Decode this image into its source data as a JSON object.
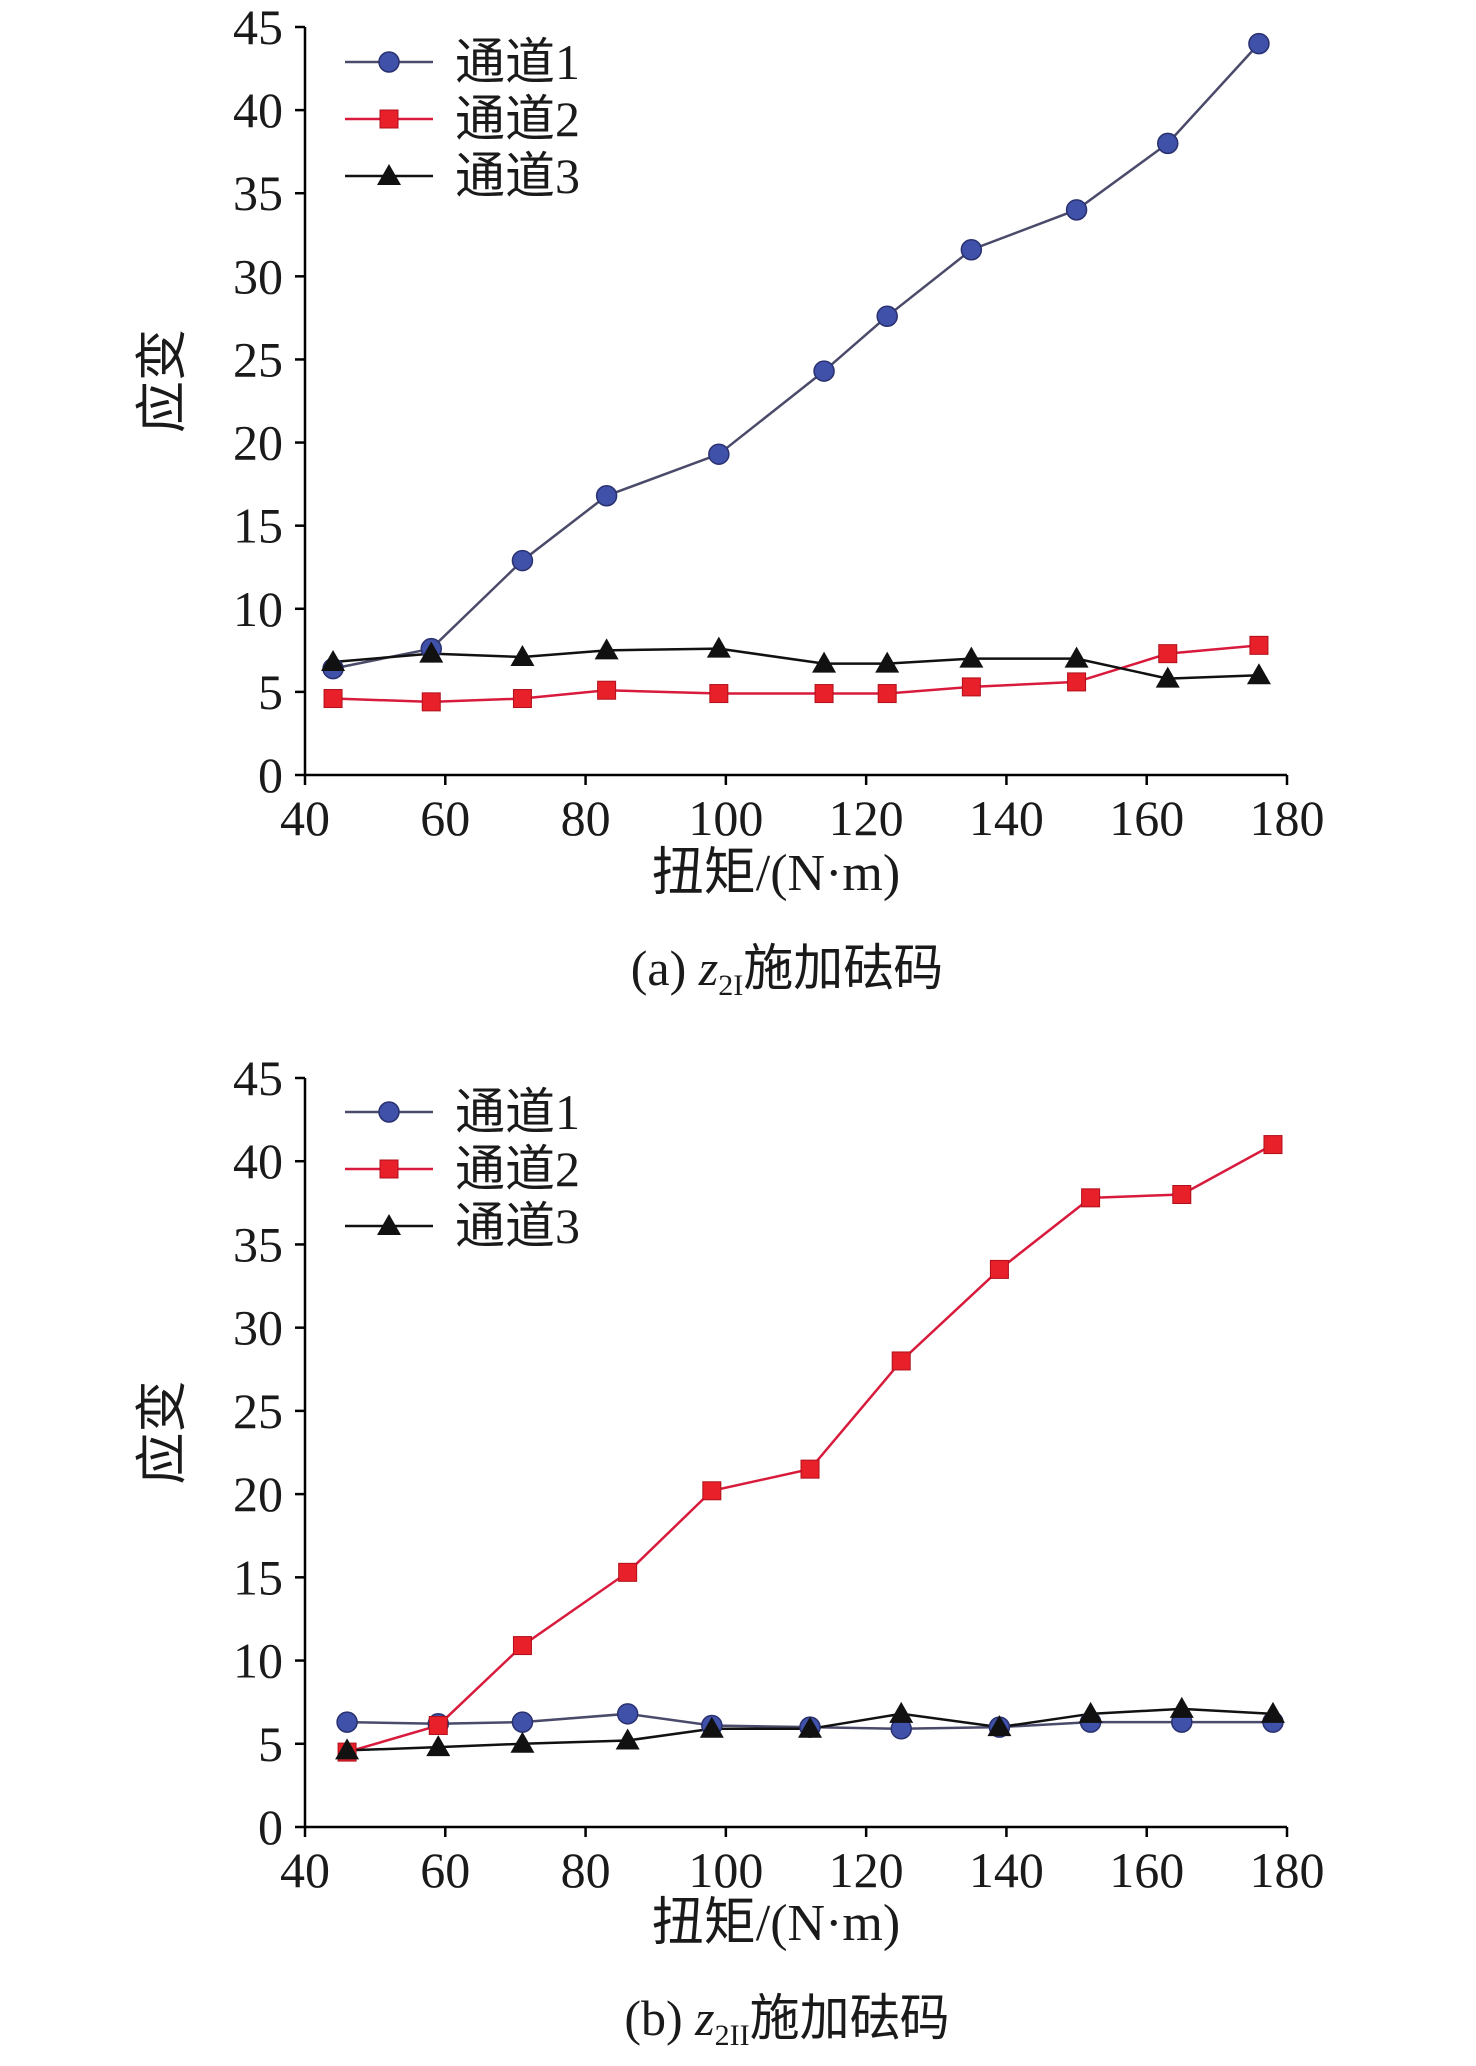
{
  "colors": {
    "channel1": "#3f51a8",
    "channel2": "#e8202a",
    "channel3": "#111111",
    "line1": "#4a4a6a",
    "line2": "#d81b3c",
    "line3": "#111111"
  },
  "chart_data": [
    {
      "type": "line",
      "caption_prefix": "(a) ",
      "caption_var": "z",
      "caption_sub": "2I",
      "caption_suffix": "施加砝码",
      "xlabel": "扭矩/(N·m)",
      "ylabel": "应变",
      "xlim": [
        40,
        180
      ],
      "ylim": [
        0,
        45
      ],
      "xticks": [
        40,
        60,
        80,
        100,
        120,
        140,
        160,
        180
      ],
      "yticks": [
        0,
        5,
        10,
        15,
        20,
        25,
        30,
        35,
        40,
        45
      ],
      "legend_position": "top-left",
      "series": [
        {
          "name": "通道1",
          "marker": "circle",
          "points": [
            [
              44,
              6.4
            ],
            [
              58,
              7.6
            ],
            [
              71,
              12.9
            ],
            [
              83,
              16.8
            ],
            [
              99,
              19.3
            ],
            [
              114,
              24.3
            ],
            [
              123,
              27.6
            ],
            [
              135,
              31.6
            ],
            [
              150,
              34.0
            ],
            [
              163,
              38.0
            ],
            [
              176,
              44.0
            ]
          ]
        },
        {
          "name": "通道2",
          "marker": "square",
          "points": [
            [
              44,
              4.6
            ],
            [
              58,
              4.4
            ],
            [
              71,
              4.6
            ],
            [
              83,
              5.1
            ],
            [
              99,
              4.9
            ],
            [
              114,
              4.9
            ],
            [
              123,
              4.9
            ],
            [
              135,
              5.3
            ],
            [
              150,
              5.6
            ],
            [
              163,
              7.3
            ],
            [
              176,
              7.8
            ]
          ]
        },
        {
          "name": "通道3",
          "marker": "triangle",
          "points": [
            [
              44,
              6.8
            ],
            [
              58,
              7.3
            ],
            [
              71,
              7.1
            ],
            [
              83,
              7.5
            ],
            [
              99,
              7.6
            ],
            [
              114,
              6.7
            ],
            [
              123,
              6.7
            ],
            [
              135,
              7.0
            ],
            [
              150,
              7.0
            ],
            [
              163,
              5.8
            ],
            [
              176,
              6.0
            ]
          ]
        }
      ]
    },
    {
      "type": "line",
      "caption_prefix": "(b) ",
      "caption_var": "z",
      "caption_sub": "2II",
      "caption_suffix": "施加砝码",
      "xlabel": "扭矩/(N·m)",
      "ylabel": "应变",
      "xlim": [
        40,
        180
      ],
      "ylim": [
        0,
        45
      ],
      "xticks": [
        40,
        60,
        80,
        100,
        120,
        140,
        160,
        180
      ],
      "yticks": [
        0,
        5,
        10,
        15,
        20,
        25,
        30,
        35,
        40,
        45
      ],
      "legend_position": "top-left",
      "series": [
        {
          "name": "通道1",
          "marker": "circle",
          "points": [
            [
              46,
              6.3
            ],
            [
              59,
              6.2
            ],
            [
              71,
              6.3
            ],
            [
              86,
              6.8
            ],
            [
              98,
              6.1
            ],
            [
              112,
              6.0
            ],
            [
              125,
              5.9
            ],
            [
              139,
              6.0
            ],
            [
              152,
              6.3
            ],
            [
              165,
              6.3
            ],
            [
              178,
              6.3
            ]
          ]
        },
        {
          "name": "通道2",
          "marker": "square",
          "points": [
            [
              46,
              4.5
            ],
            [
              59,
              6.1
            ],
            [
              71,
              10.9
            ],
            [
              86,
              15.3
            ],
            [
              98,
              20.2
            ],
            [
              112,
              21.5
            ],
            [
              125,
              28.0
            ],
            [
              139,
              33.5
            ],
            [
              152,
              37.8
            ],
            [
              165,
              38.0
            ],
            [
              178,
              41.0
            ]
          ]
        },
        {
          "name": "通道3",
          "marker": "triangle",
          "points": [
            [
              46,
              4.6
            ],
            [
              59,
              4.8
            ],
            [
              71,
              5.0
            ],
            [
              86,
              5.2
            ],
            [
              98,
              5.9
            ],
            [
              112,
              5.9
            ],
            [
              125,
              6.8
            ],
            [
              139,
              6.0
            ],
            [
              152,
              6.8
            ],
            [
              165,
              7.1
            ],
            [
              178,
              6.8
            ]
          ]
        }
      ]
    }
  ]
}
